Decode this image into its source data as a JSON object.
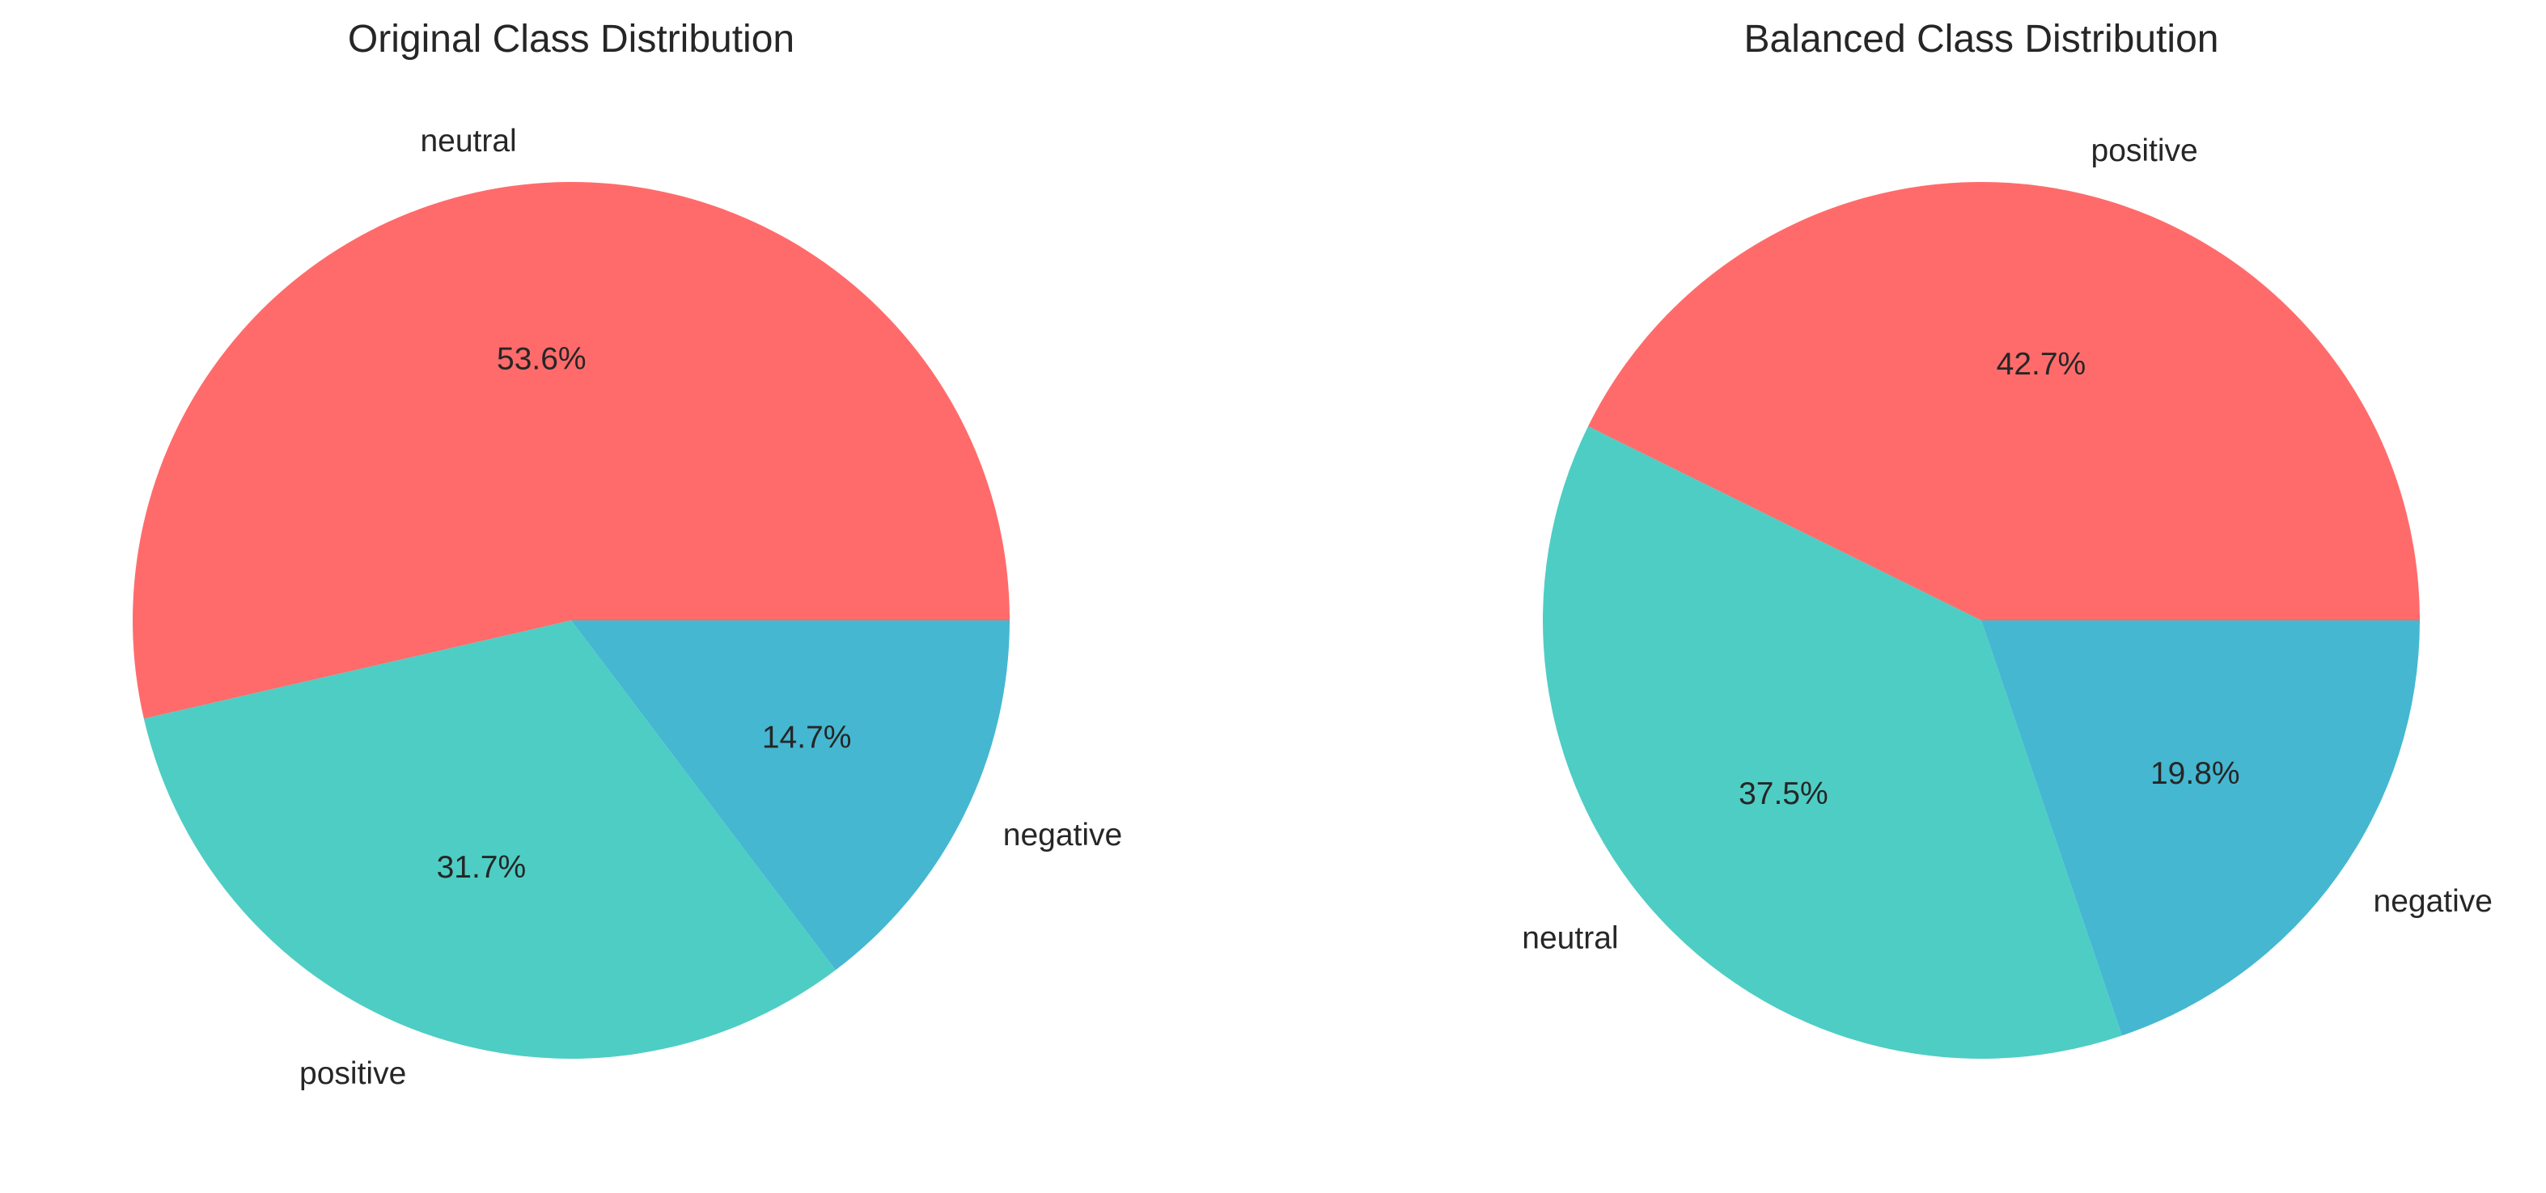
{
  "chart_data": [
    {
      "type": "pie",
      "title": "Original Class Distribution",
      "labels": [
        "neutral",
        "positive",
        "negative"
      ],
      "values": [
        53.6,
        31.7,
        14.7
      ],
      "percent_labels": [
        "53.6%",
        "31.7%",
        "14.7%"
      ],
      "colors": [
        "#ff6b6b",
        "#4ecdc4",
        "#45b7d1"
      ],
      "start_angle": 0,
      "direction": "counterclockwise"
    },
    {
      "type": "pie",
      "title": "Balanced Class Distribution",
      "labels": [
        "positive",
        "neutral",
        "negative"
      ],
      "values": [
        42.7,
        37.5,
        19.8
      ],
      "percent_labels": [
        "42.7%",
        "37.5%",
        "19.8%"
      ],
      "colors": [
        "#ff6b6b",
        "#4ecdc4",
        "#45b7d1"
      ],
      "start_angle": 0,
      "direction": "counterclockwise"
    }
  ]
}
